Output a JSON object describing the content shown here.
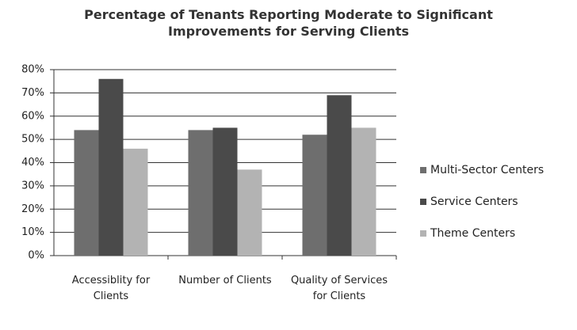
{
  "chart_data": {
    "type": "bar",
    "title": "Percentage of Tenants Reporting Moderate to Significant Improvements for Serving Clients",
    "categories": [
      "Accessiblity for Clients",
      "Number of Clients",
      "Quality of Services for Clients"
    ],
    "series": [
      {
        "name": "Multi-Sector Centers",
        "color": "#6e6e6e",
        "values": [
          54,
          54,
          52
        ]
      },
      {
        "name": "Service Centers",
        "color": "#4a4a4a",
        "values": [
          76,
          55,
          69
        ]
      },
      {
        "name": "Theme Centers",
        "color": "#b3b3b3",
        "values": [
          46,
          37,
          55
        ]
      }
    ],
    "ylim": [
      0,
      80
    ],
    "yticks": [
      {
        "value": 0,
        "label": "0%"
      },
      {
        "value": 10,
        "label": "10%"
      },
      {
        "value": 20,
        "label": "20%"
      },
      {
        "value": 30,
        "label": "30%"
      },
      {
        "value": 40,
        "label": "40%"
      },
      {
        "value": 50,
        "label": "50%"
      },
      {
        "value": 60,
        "label": "60%"
      },
      {
        "value": 70,
        "label": "70%"
      },
      {
        "value": 80,
        "label": "80%"
      }
    ],
    "grid": true,
    "legend": "right"
  }
}
